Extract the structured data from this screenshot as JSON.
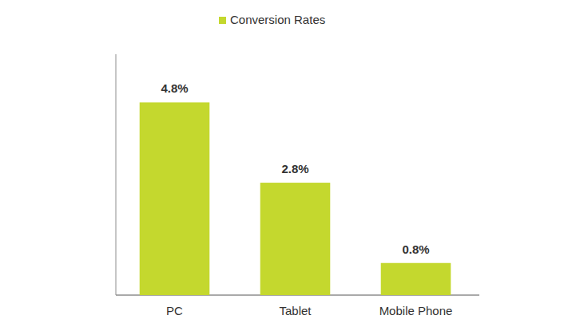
{
  "chart_data": {
    "type": "bar",
    "categories": [
      "PC",
      "Tablet",
      "Mobile Phone"
    ],
    "series": [
      {
        "name": "Conversion Rates",
        "color": "#c4d82e",
        "values": [
          4.8,
          2.8,
          0.8
        ],
        "value_labels": [
          "4.8%",
          "2.8%",
          "0.8%"
        ]
      }
    ],
    "ylim": [
      0,
      6
    ],
    "data_labels": true,
    "tick_labels": "x",
    "legend": "top"
  }
}
